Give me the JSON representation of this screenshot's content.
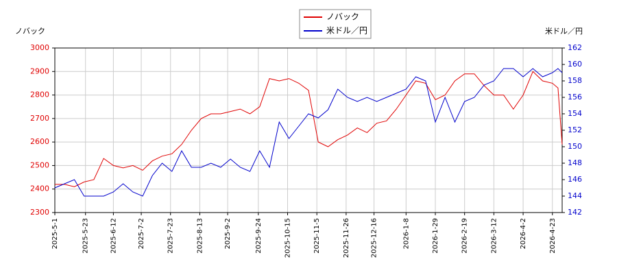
{
  "chart_data": {
    "type": "line",
    "y_label": "ノバック",
    "y2_label": "米ドル／円",
    "x": [
      "2025-5-1",
      "2025-5-8",
      "2025-5-15",
      "2025-5-22",
      "2025-5-29",
      "2025-6-5",
      "2025-6-12",
      "2025-6-19",
      "2025-6-26",
      "2025-7-3",
      "2025-7-10",
      "2025-7-17",
      "2025-7-24",
      "2025-7-31",
      "2025-8-7",
      "2025-8-14",
      "2025-8-21",
      "2025-8-28",
      "2025-9-4",
      "2025-9-11",
      "2025-9-18",
      "2025-9-25",
      "2025-10-2",
      "2025-10-9",
      "2025-10-16",
      "2025-10-23",
      "2025-10-30",
      "2025-11-6",
      "2025-11-13",
      "2025-11-20",
      "2025-11-27",
      "2025-12-4",
      "2025-12-11",
      "2025-12-18",
      "2025-12-25",
      "2026-1-1",
      "2026-1-8",
      "2026-1-15",
      "2026-1-22",
      "2026-1-29",
      "2026-2-5",
      "2026-2-12",
      "2026-2-19",
      "2026-2-26",
      "2026-3-5",
      "2026-3-12",
      "2026-3-19",
      "2026-3-26",
      "2026-4-2",
      "2026-4-9",
      "2026-4-16",
      "2026-4-23",
      "2026-4-27",
      "2026-4-30"
    ],
    "series": [
      {
        "name": "ノバック",
        "color": "#e00000",
        "values": [
          2420,
          2420,
          2410,
          2430,
          2440,
          2530,
          2500,
          2490,
          2500,
          2480,
          2520,
          2540,
          2550,
          2590,
          2650,
          2700,
          2720,
          2720,
          2730,
          2740,
          2720,
          2750,
          2870,
          2860,
          2870,
          2850,
          2820,
          2600,
          2580,
          2610,
          2630,
          2660,
          2640,
          2680,
          2690,
          2740,
          2800,
          2860,
          2850,
          2780,
          2800,
          2860,
          2890,
          2890,
          2840,
          2800,
          2800,
          2740,
          2800,
          2900,
          2860,
          2850,
          2830,
          2590
        ]
      },
      {
        "name": "米ドル／円",
        "color": "#0000cc",
        "axis": "y2",
        "values": [
          145,
          145.5,
          146,
          144,
          144,
          144,
          144.5,
          145.5,
          144.5,
          144,
          146.5,
          148,
          147,
          149.5,
          147.5,
          147.5,
          148,
          147.5,
          148.5,
          147.5,
          147,
          149.5,
          147.5,
          153,
          151,
          152.5,
          154,
          153.5,
          154.5,
          157,
          156,
          155.5,
          156,
          155.5,
          156,
          156.5,
          157,
          158.5,
          158,
          153,
          156,
          153,
          155.5,
          156,
          157.5,
          158,
          159.5,
          159.5,
          158.5,
          159.5,
          158.5,
          159,
          159.5,
          159
        ]
      }
    ],
    "ylim": [
      2300,
      3000
    ],
    "yticks": [
      2300,
      2400,
      2500,
      2600,
      2700,
      2800,
      2900,
      3000
    ],
    "y2lim": [
      142,
      162
    ],
    "y2ticks": [
      142,
      144,
      146,
      148,
      150,
      152,
      154,
      156,
      158,
      160,
      162
    ],
    "xticks": [
      "2025-5-1",
      "2025-5-23",
      "2025-6-12",
      "2025-7-2",
      "2025-7-23",
      "2025-8-13",
      "2025-9-2",
      "2025-9-24",
      "2025-10-15",
      "2025-11-5",
      "2025-11-26",
      "2025-12-16",
      "2026-1-8",
      "2026-1-29",
      "2026-2-19",
      "2026-3-12",
      "2026-4-2",
      "2026-4-23"
    ],
    "grid": true
  }
}
